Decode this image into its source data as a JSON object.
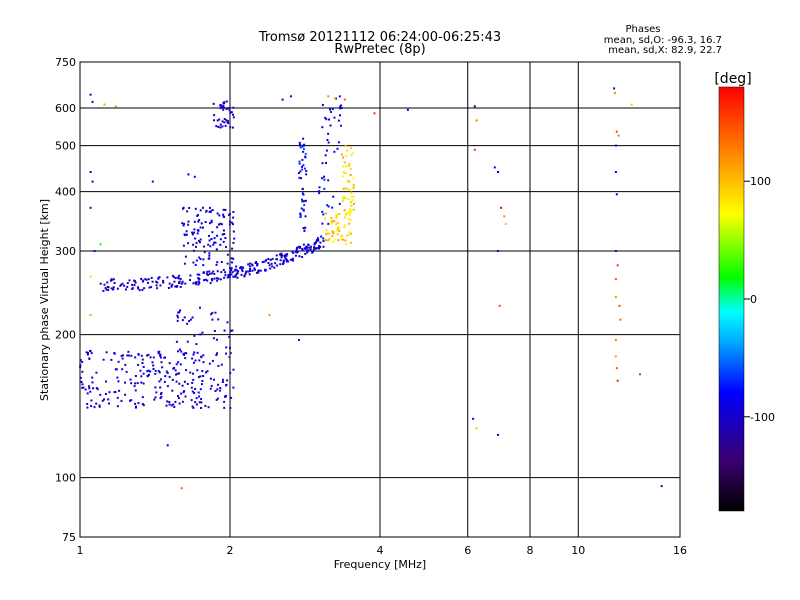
{
  "chart_data": {
    "type": "scatter",
    "title": "Tromsø 20121112 06:24:00-06:25:43",
    "subtitle": "RwPretec (8p)",
    "xlabel": "Frequency [MHz]",
    "ylabel": "Stationary phase Virtual Height [km]",
    "x_scale": "log",
    "y_scale": "log",
    "xlim": [
      1,
      16
    ],
    "ylim": [
      75,
      750
    ],
    "x_ticks": [
      1,
      2,
      4,
      6,
      8,
      10,
      16
    ],
    "y_ticks": [
      75,
      100,
      200,
      300,
      400,
      500,
      600,
      750
    ],
    "x_gridlines": [
      2,
      4,
      6,
      8,
      10
    ],
    "y_gridlines": [
      100,
      200,
      300,
      400,
      500,
      600
    ],
    "grid": true,
    "stats": {
      "header": "Phases",
      "line_o": "mean, sd,O: -96.3, 16.7",
      "line_x": "mean, sd,X:  82.9, 22.7"
    },
    "colorbar": {
      "label": "[deg]",
      "range": [
        -180,
        180
      ],
      "ticks": [
        100,
        0,
        -100
      ],
      "placement": "right"
    },
    "clusters": [
      {
        "fmin": 1.0,
        "fmax": 2.05,
        "hmin": 140,
        "hmax": 185,
        "n": 260,
        "phase": [
          -110,
          -85
        ]
      },
      {
        "fmin": 1.55,
        "fmax": 2.05,
        "hmin": 180,
        "hmax": 230,
        "n": 40,
        "phase": [
          -110,
          -85
        ]
      },
      {
        "fmin": 1.6,
        "fmax": 2.05,
        "hmin": 280,
        "hmax": 370,
        "n": 120,
        "phase": [
          -110,
          -80
        ]
      },
      {
        "fmin": 1.85,
        "fmax": 2.05,
        "hmin": 545,
        "hmax": 620,
        "n": 40,
        "phase": [
          -110,
          -90
        ]
      },
      {
        "fmin": 2.75,
        "fmax": 2.85,
        "hmin": 330,
        "hmax": 520,
        "n": 50,
        "phase": [
          -110,
          -55
        ]
      },
      {
        "fmin": 3.1,
        "fmax": 3.5,
        "hmin": 310,
        "hmax": 360,
        "n": 55,
        "phase": [
          70,
          115
        ]
      },
      {
        "fmin": 3.35,
        "fmax": 3.55,
        "hmin": 360,
        "hmax": 500,
        "n": 50,
        "phase": [
          60,
          115
        ]
      },
      {
        "fmin": 3.0,
        "fmax": 3.35,
        "hmin": 340,
        "hmax": 640,
        "n": 45,
        "phase": [
          -110,
          -70
        ]
      }
    ],
    "trace": {
      "f_start": 1.1,
      "f_end": 3.1,
      "h_start": 250,
      "h_end": 310,
      "curvature": 1.8,
      "n": 300,
      "spread": 0.03,
      "phase": [
        -110,
        -85
      ]
    },
    "points": [
      {
        "x": 1.05,
        "y": 640,
        "phase": -100
      },
      {
        "x": 1.06,
        "y": 618,
        "phase": -105
      },
      {
        "x": 1.12,
        "y": 610,
        "phase": 110
      },
      {
        "x": 1.18,
        "y": 605,
        "phase": 120
      },
      {
        "x": 1.05,
        "y": 440,
        "phase": -100
      },
      {
        "x": 1.06,
        "y": 420,
        "phase": -100
      },
      {
        "x": 1.05,
        "y": 370,
        "phase": -100
      },
      {
        "x": 1.07,
        "y": 300,
        "phase": -100
      },
      {
        "x": 1.1,
        "y": 310,
        "phase": 20
      },
      {
        "x": 1.05,
        "y": 265,
        "phase": 90
      },
      {
        "x": 1.05,
        "y": 220,
        "phase": 110
      },
      {
        "x": 1.4,
        "y": 420,
        "phase": -100
      },
      {
        "x": 1.6,
        "y": 95,
        "phase": 140
      },
      {
        "x": 1.5,
        "y": 117,
        "phase": -100
      },
      {
        "x": 1.65,
        "y": 435,
        "phase": -95
      },
      {
        "x": 1.7,
        "y": 430,
        "phase": -95
      },
      {
        "x": 2.4,
        "y": 220,
        "phase": 120
      },
      {
        "x": 2.75,
        "y": 195,
        "phase": -90
      },
      {
        "x": 2.65,
        "y": 635,
        "phase": -95
      },
      {
        "x": 2.55,
        "y": 625,
        "phase": -95
      },
      {
        "x": 3.15,
        "y": 635,
        "phase": 120
      },
      {
        "x": 3.25,
        "y": 630,
        "phase": 110
      },
      {
        "x": 3.4,
        "y": 625,
        "phase": 140
      },
      {
        "x": 3.35,
        "y": 600,
        "phase": -95
      },
      {
        "x": 3.9,
        "y": 585,
        "phase": 160
      },
      {
        "x": 4.55,
        "y": 595,
        "phase": -95
      },
      {
        "x": 6.2,
        "y": 605,
        "phase": -100
      },
      {
        "x": 6.25,
        "y": 565,
        "phase": 130
      },
      {
        "x": 6.2,
        "y": 490,
        "phase": 160
      },
      {
        "x": 6.8,
        "y": 450,
        "phase": -90
      },
      {
        "x": 6.9,
        "y": 440,
        "phase": -90
      },
      {
        "x": 7.0,
        "y": 370,
        "phase": 180
      },
      {
        "x": 7.1,
        "y": 355,
        "phase": 120
      },
      {
        "x": 7.15,
        "y": 342,
        "phase": 100
      },
      {
        "x": 6.9,
        "y": 300,
        "phase": -100
      },
      {
        "x": 6.95,
        "y": 230,
        "phase": 150
      },
      {
        "x": 6.15,
        "y": 133,
        "phase": -95
      },
      {
        "x": 6.25,
        "y": 127,
        "phase": 100
      },
      {
        "x": 6.9,
        "y": 123,
        "phase": -120
      },
      {
        "x": 11.8,
        "y": 660,
        "phase": -110
      },
      {
        "x": 11.85,
        "y": 645,
        "phase": 120
      },
      {
        "x": 11.95,
        "y": 535,
        "phase": 150
      },
      {
        "x": 12.05,
        "y": 525,
        "phase": 130
      },
      {
        "x": 11.9,
        "y": 500,
        "phase": -105
      },
      {
        "x": 11.9,
        "y": 440,
        "phase": -100
      },
      {
        "x": 11.95,
        "y": 395,
        "phase": -100
      },
      {
        "x": 11.9,
        "y": 300,
        "phase": -105
      },
      {
        "x": 12.0,
        "y": 280,
        "phase": 160
      },
      {
        "x": 11.9,
        "y": 262,
        "phase": 140
      },
      {
        "x": 11.9,
        "y": 240,
        "phase": 120
      },
      {
        "x": 12.1,
        "y": 230,
        "phase": 150
      },
      {
        "x": 12.15,
        "y": 215,
        "phase": 140
      },
      {
        "x": 11.9,
        "y": 195,
        "phase": 130
      },
      {
        "x": 11.9,
        "y": 180,
        "phase": 110
      },
      {
        "x": 11.95,
        "y": 170,
        "phase": 150
      },
      {
        "x": 12.0,
        "y": 160,
        "phase": 170
      },
      {
        "x": 13.3,
        "y": 165,
        "phase": 160
      },
      {
        "x": 12.8,
        "y": 610,
        "phase": 100
      },
      {
        "x": 14.7,
        "y": 96,
        "phase": -100
      }
    ]
  }
}
